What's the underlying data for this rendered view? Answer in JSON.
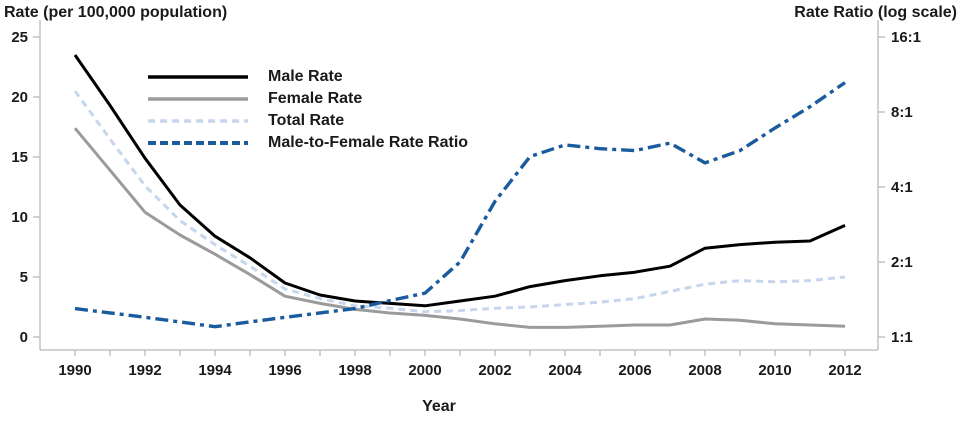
{
  "chart_data": {
    "type": "line",
    "title_left_axis": "Rate (per 100,000 population)",
    "title_right_axis": "Rate Ratio (log scale)",
    "xlabel": "Year",
    "x": [
      1990,
      1991,
      1992,
      1993,
      1994,
      1995,
      1996,
      1997,
      1998,
      1999,
      2000,
      2001,
      2002,
      2003,
      2004,
      2005,
      2006,
      2007,
      2008,
      2009,
      2010,
      2011,
      2012
    ],
    "x_labeled_ticks": [
      "1990",
      "1992",
      "1994",
      "1996",
      "1998",
      "2000",
      "2002",
      "2004",
      "2006",
      "2008",
      "2010",
      "2012"
    ],
    "left_axis": {
      "ticks": [
        0,
        5,
        10,
        15,
        20,
        25
      ],
      "tick_labels": [
        "0",
        "5",
        "10",
        "15",
        "20",
        "25"
      ],
      "range": [
        0,
        25
      ],
      "scale": "linear"
    },
    "right_axis": {
      "ticks": [
        1,
        2,
        4,
        8,
        16
      ],
      "tick_labels": [
        "1:1",
        "2:1",
        "4:1",
        "8:1",
        "16:1"
      ],
      "range": [
        1,
        16
      ],
      "scale": "log2"
    },
    "grid": "off",
    "legend_position": "top-left-inside",
    "series": [
      {
        "name": "Male Rate",
        "axis": "left",
        "color": "#000000",
        "style": "solid",
        "values": [
          23.5,
          19.3,
          14.9,
          11.0,
          8.4,
          6.6,
          4.5,
          3.5,
          3.0,
          2.8,
          2.6,
          3.0,
          3.4,
          4.2,
          4.7,
          5.1,
          5.4,
          5.9,
          7.4,
          7.7,
          7.9,
          8.0,
          9.3
        ]
      },
      {
        "name": "Female Rate",
        "axis": "left",
        "color": "#9b9b9b",
        "style": "solid",
        "values": [
          17.4,
          13.9,
          10.4,
          8.5,
          6.9,
          5.2,
          3.4,
          2.8,
          2.3,
          2.0,
          1.8,
          1.5,
          1.1,
          0.8,
          0.8,
          0.9,
          1.0,
          1.0,
          1.5,
          1.4,
          1.1,
          1.0,
          0.9
        ]
      },
      {
        "name": "Total Rate",
        "axis": "left",
        "color": "#c6d6ee",
        "style": "dashed",
        "values": [
          20.5,
          16.5,
          12.6,
          9.7,
          7.7,
          5.9,
          4.0,
          3.2,
          2.6,
          2.4,
          2.1,
          2.2,
          2.4,
          2.5,
          2.7,
          2.9,
          3.2,
          3.8,
          4.4,
          4.7,
          4.6,
          4.7,
          5.0
        ]
      },
      {
        "name": "Male-to-Female Rate Ratio",
        "axis": "right",
        "color": "#1a5b9e",
        "style": "dashdot",
        "values": [
          1.3,
          1.25,
          1.2,
          1.15,
          1.1,
          1.15,
          1.2,
          1.25,
          1.3,
          1.4,
          1.5,
          2.0,
          3.5,
          5.3,
          5.9,
          5.7,
          5.6,
          6.0,
          5.0,
          5.6,
          6.9,
          8.4,
          10.5
        ]
      }
    ],
    "axis_color": "#b9b9b9"
  }
}
